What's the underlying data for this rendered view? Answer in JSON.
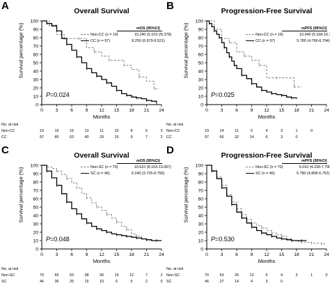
{
  "panels": [
    {
      "id": "A",
      "title": "Overall Survival",
      "ylabel": "Survival percentage (%)",
      "xlabel": "Months",
      "p_prefix": "P",
      "p_value": "=0.024",
      "legend_header": "mOS (95%CI)",
      "legend": [
        {
          "name": "Non-CC",
          "n": "(n = 19)",
          "value": "15.240 (5.102-25.378)",
          "style": "dash"
        },
        {
          "name": "CC",
          "n": "(n = 97)",
          "value": "8.250 (6.979-9.521)",
          "style": "solid"
        }
      ],
      "risk_header": "No. at risk",
      "risk": [
        {
          "name": "Non-CC",
          "values": [
            "19",
            "16",
            "15",
            "13",
            "11",
            "10",
            "8",
            "5",
            "3"
          ]
        },
        {
          "name": "CC",
          "values": [
            "97",
            "85",
            "63",
            "40",
            "29",
            "15",
            "9",
            "7",
            "2"
          ]
        }
      ]
    },
    {
      "id": "B",
      "title": "Progression-Free Survival",
      "ylabel": "Survival percentage (%)",
      "xlabel": "Months",
      "p_prefix": "P",
      "p_value": "=0.025",
      "legend_header": "mPFS (95%CI)",
      "legend": [
        {
          "name": "Non-CC",
          "n": "(n = 19)",
          "value": "10.940 (5.168-16.712)",
          "style": "dash"
        },
        {
          "name": "CC",
          "n": "(n = 97)",
          "value": "5.780 (4.766-6.794)",
          "style": "solid"
        }
      ],
      "risk_header": "No. at risk",
      "risk": [
        {
          "name": "Non-CC",
          "values": [
            "19",
            "14",
            "11",
            "6",
            "4",
            "3",
            "1",
            "0",
            ""
          ]
        },
        {
          "name": "CC",
          "values": [
            "97",
            "66",
            "32",
            "14",
            "6",
            "3",
            "0",
            "",
            ""
          ]
        }
      ]
    },
    {
      "id": "C",
      "title": "Overall Survival",
      "ylabel": "Survival percentage (%)",
      "xlabel": "Months",
      "p_prefix": "P",
      "p_value": "=0.048",
      "legend_header": "mOS (95%CI)",
      "legend": [
        {
          "name": "Non-SC",
          "n": "(n = 70)",
          "value": "10.610 (8.153-13.067)",
          "style": "dash"
        },
        {
          "name": "SC",
          "n": "(n = 46)",
          "value": "6.240 (3.725-8.755)",
          "style": "solid"
        }
      ],
      "risk_header": "No. at risk",
      "risk": [
        {
          "name": "Non-SC",
          "values": [
            "70",
            "65",
            "53",
            "38",
            "30",
            "19",
            "12",
            "7",
            "2"
          ]
        },
        {
          "name": "SC",
          "values": [
            "46",
            "36",
            "25",
            "15",
            "10",
            "6",
            "5",
            "2",
            "0"
          ]
        }
      ]
    },
    {
      "id": "D",
      "title": "Progression-Free Survival",
      "ylabel": "Survival percentage (%)",
      "xlabel": "Months",
      "p_prefix": "P",
      "p_value": "=0.530",
      "legend_header": "mPFS (95%CI)",
      "legend": [
        {
          "name": "Non-SC",
          "n": "(n = 70)",
          "value": "6.010 (4.230-7.790)",
          "style": "dash"
        },
        {
          "name": "SC",
          "n": "(n = 46)",
          "value": "5.780 (4.808-6.752)",
          "style": "solid"
        }
      ],
      "risk_header": "No. at risk",
      "risk": [
        {
          "name": "Non-SC",
          "values": [
            "70",
            "53",
            "25",
            "13",
            "6",
            "4",
            "3",
            "1",
            "0"
          ]
        },
        {
          "name": "SC",
          "values": [
            "46",
            "27",
            "14",
            "4",
            "3",
            "0",
            "",
            "",
            ""
          ]
        }
      ]
    }
  ],
  "chart_data": [
    {
      "type": "line",
      "title": "Overall Survival",
      "xlabel": "Months",
      "ylabel": "Survival percentage (%)",
      "xlim": [
        0,
        24
      ],
      "ylim": [
        0,
        100
      ],
      "xticks": [
        0,
        3,
        6,
        9,
        12,
        15,
        18,
        21,
        24
      ],
      "yticks": [
        0,
        10,
        20,
        30,
        40,
        50,
        60,
        70,
        80,
        90,
        100
      ],
      "series": [
        {
          "name": "Non-CC",
          "style": "dash",
          "color": "#808080",
          "x": [
            0,
            1.5,
            3,
            4.5,
            6,
            7.5,
            9,
            10.5,
            12,
            13.5,
            15,
            16.5,
            18,
            19.5,
            21,
            22.5,
            23.5
          ],
          "y": [
            100,
            95,
            84,
            79,
            79,
            79,
            68,
            63,
            58,
            53,
            53,
            47,
            42,
            33,
            28,
            19,
            19
          ]
        },
        {
          "name": "CC",
          "style": "solid",
          "color": "#000000",
          "x": [
            0,
            1,
            2,
            3,
            4,
            5,
            6,
            7,
            8,
            9,
            10,
            11,
            12,
            13,
            14,
            15,
            16,
            17,
            18,
            19,
            20,
            21,
            22,
            23
          ],
          "y": [
            100,
            97,
            94,
            88,
            79,
            72,
            65,
            57,
            50,
            43,
            38,
            34,
            30,
            26,
            22,
            17,
            13,
            11,
            9,
            8,
            7,
            5,
            4,
            2
          ]
        }
      ]
    },
    {
      "type": "line",
      "title": "Progression-Free Survival",
      "xlabel": "Months",
      "ylabel": "Survival percentage (%)",
      "xlim": [
        0,
        24
      ],
      "ylim": [
        0,
        100
      ],
      "xticks": [
        0,
        3,
        6,
        9,
        12,
        15,
        18,
        21,
        24
      ],
      "yticks": [
        0,
        10,
        20,
        30,
        40,
        50,
        60,
        70,
        80,
        90,
        100
      ],
      "series": [
        {
          "name": "Non-CC",
          "style": "dash",
          "color": "#808080",
          "x": [
            0,
            1.5,
            3,
            4.5,
            6,
            7.5,
            9,
            10.5,
            12,
            14,
            16,
            17.5,
            19
          ],
          "y": [
            100,
            90,
            79,
            74,
            63,
            58,
            53,
            47,
            32,
            32,
            32,
            21,
            21
          ]
        },
        {
          "name": "CC",
          "style": "solid",
          "color": "#000000",
          "x": [
            0,
            0.5,
            1,
            1.5,
            2,
            2.5,
            3,
            3.5,
            4,
            4.5,
            5,
            5.5,
            6,
            7,
            8,
            9,
            10,
            11,
            12,
            13,
            14,
            15,
            16,
            17,
            18
          ],
          "y": [
            100,
            97,
            93,
            88,
            84,
            80,
            74,
            68,
            62,
            57,
            52,
            47,
            43,
            35,
            31,
            25,
            21,
            17,
            15,
            13,
            12,
            11,
            9,
            8,
            7
          ]
        }
      ]
    },
    {
      "type": "line",
      "title": "Overall Survival",
      "xlabel": "Months",
      "ylabel": "Survival percentage (%)",
      "xlim": [
        0,
        24
      ],
      "ylim": [
        0,
        100
      ],
      "xticks": [
        0,
        3,
        6,
        9,
        12,
        15,
        18,
        21,
        24
      ],
      "yticks": [
        0,
        10,
        20,
        30,
        40,
        50,
        60,
        70,
        80,
        90,
        100
      ],
      "series": [
        {
          "name": "Non-SC",
          "style": "dash",
          "color": "#808080",
          "x": [
            0,
            1,
            2,
            3,
            4,
            5,
            6,
            7,
            8,
            9,
            10,
            11,
            12,
            13,
            14,
            15,
            16,
            17,
            18,
            19,
            20,
            21,
            22,
            23,
            24
          ],
          "y": [
            100,
            98,
            96,
            93,
            89,
            84,
            79,
            73,
            66,
            61,
            55,
            50,
            46,
            41,
            37,
            32,
            27,
            23,
            18,
            15,
            12,
            11,
            10,
            10,
            10
          ]
        },
        {
          "name": "SC",
          "style": "solid",
          "color": "#000000",
          "x": [
            0,
            1,
            2,
            3,
            4,
            5,
            6,
            7,
            8,
            9,
            10,
            11,
            12,
            13,
            14,
            15,
            16,
            17,
            18,
            19,
            20,
            21,
            22,
            23,
            24
          ],
          "y": [
            100,
            93,
            85,
            76,
            66,
            56,
            48,
            42,
            36,
            31,
            27,
            24,
            22,
            20,
            18,
            17,
            16,
            15,
            14,
            13,
            12,
            11,
            10,
            10,
            10
          ]
        }
      ]
    },
    {
      "type": "line",
      "title": "Progression-Free Survival",
      "xlabel": "Months",
      "ylabel": "Survival percentage (%)",
      "xlim": [
        0,
        24
      ],
      "ylim": [
        0,
        100
      ],
      "xticks": [
        0,
        3,
        6,
        9,
        12,
        15,
        18,
        21,
        24
      ],
      "yticks": [
        0,
        10,
        20,
        30,
        40,
        50,
        60,
        70,
        80,
        90,
        100
      ],
      "series": [
        {
          "name": "Non-SC",
          "style": "dash",
          "color": "#808080",
          "x": [
            0,
            1,
            2,
            3,
            4,
            5,
            6,
            7,
            8,
            9,
            10,
            11,
            12,
            13,
            14,
            15,
            16,
            17,
            18,
            19,
            20,
            21,
            22,
            23,
            24
          ],
          "y": [
            100,
            94,
            86,
            76,
            65,
            56,
            48,
            41,
            35,
            31,
            28,
            25,
            22,
            19,
            17,
            15,
            12,
            10,
            9,
            8,
            8,
            7,
            7,
            6,
            6
          ]
        },
        {
          "name": "SC",
          "style": "solid",
          "color": "#000000",
          "x": [
            0,
            1,
            2,
            3,
            4,
            5,
            6,
            7,
            8,
            9,
            10,
            11,
            12,
            13,
            14,
            15,
            16,
            17,
            18,
            19,
            20
          ],
          "y": [
            100,
            93,
            84,
            73,
            63,
            53,
            44,
            37,
            31,
            26,
            22,
            19,
            17,
            15,
            13,
            12,
            11,
            10,
            10,
            10,
            10
          ]
        }
      ]
    }
  ]
}
